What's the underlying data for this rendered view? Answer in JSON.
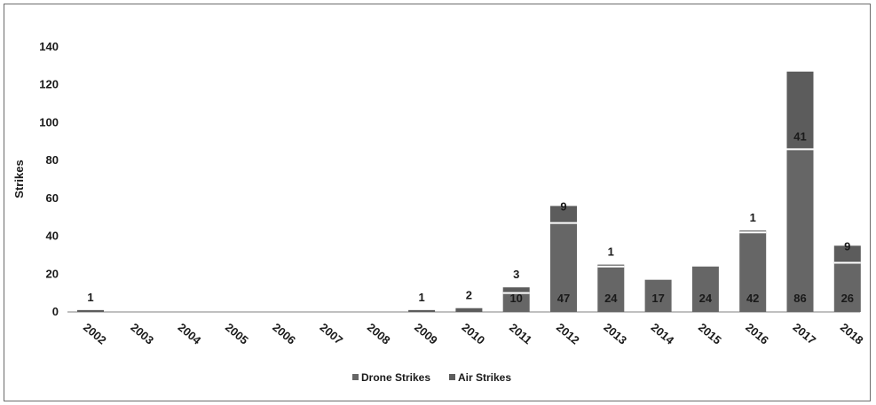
{
  "chart_data": {
    "type": "bar",
    "stacked": true,
    "title": "",
    "xlabel": "",
    "ylabel": "Strikes",
    "ylim": [
      0,
      140
    ],
    "yticks": [
      "0",
      "20",
      "40",
      "60",
      "80",
      "100",
      "120",
      "140"
    ],
    "categories": [
      "2002",
      "2003",
      "2004",
      "2005",
      "2006",
      "2007",
      "2008",
      "2009",
      "2010",
      "2011",
      "2012",
      "2013",
      "2014",
      "2015",
      "2016",
      "2017",
      "2018"
    ],
    "series": [
      {
        "name": "Drone Strikes",
        "values": [
          0,
          0,
          0,
          0,
          0,
          0,
          0,
          0,
          0,
          10,
          47,
          24,
          17,
          24,
          42,
          86,
          26
        ]
      },
      {
        "name": "Air Strikes",
        "values": [
          1,
          0,
          0,
          0,
          0,
          0,
          0,
          1,
          2,
          3,
          9,
          1,
          0,
          0,
          1,
          41,
          9
        ]
      }
    ],
    "bottom_labels": [
      "",
      "",
      "",
      "",
      "",
      "",
      "",
      "",
      "",
      "10",
      "47",
      "24",
      "17",
      "24",
      "42",
      "86",
      "26"
    ],
    "top_labels": [
      "1",
      "",
      "",
      "",
      "",
      "",
      "",
      "1",
      "2",
      "3",
      "9",
      "1",
      "",
      "",
      "1",
      "41",
      "9"
    ],
    "colors": {
      "drone": "#666666",
      "air": "#5c5c5c",
      "segment_divider": "#ffffff",
      "axis": "#808080"
    },
    "legend_position": "bottom",
    "grid": false
  }
}
